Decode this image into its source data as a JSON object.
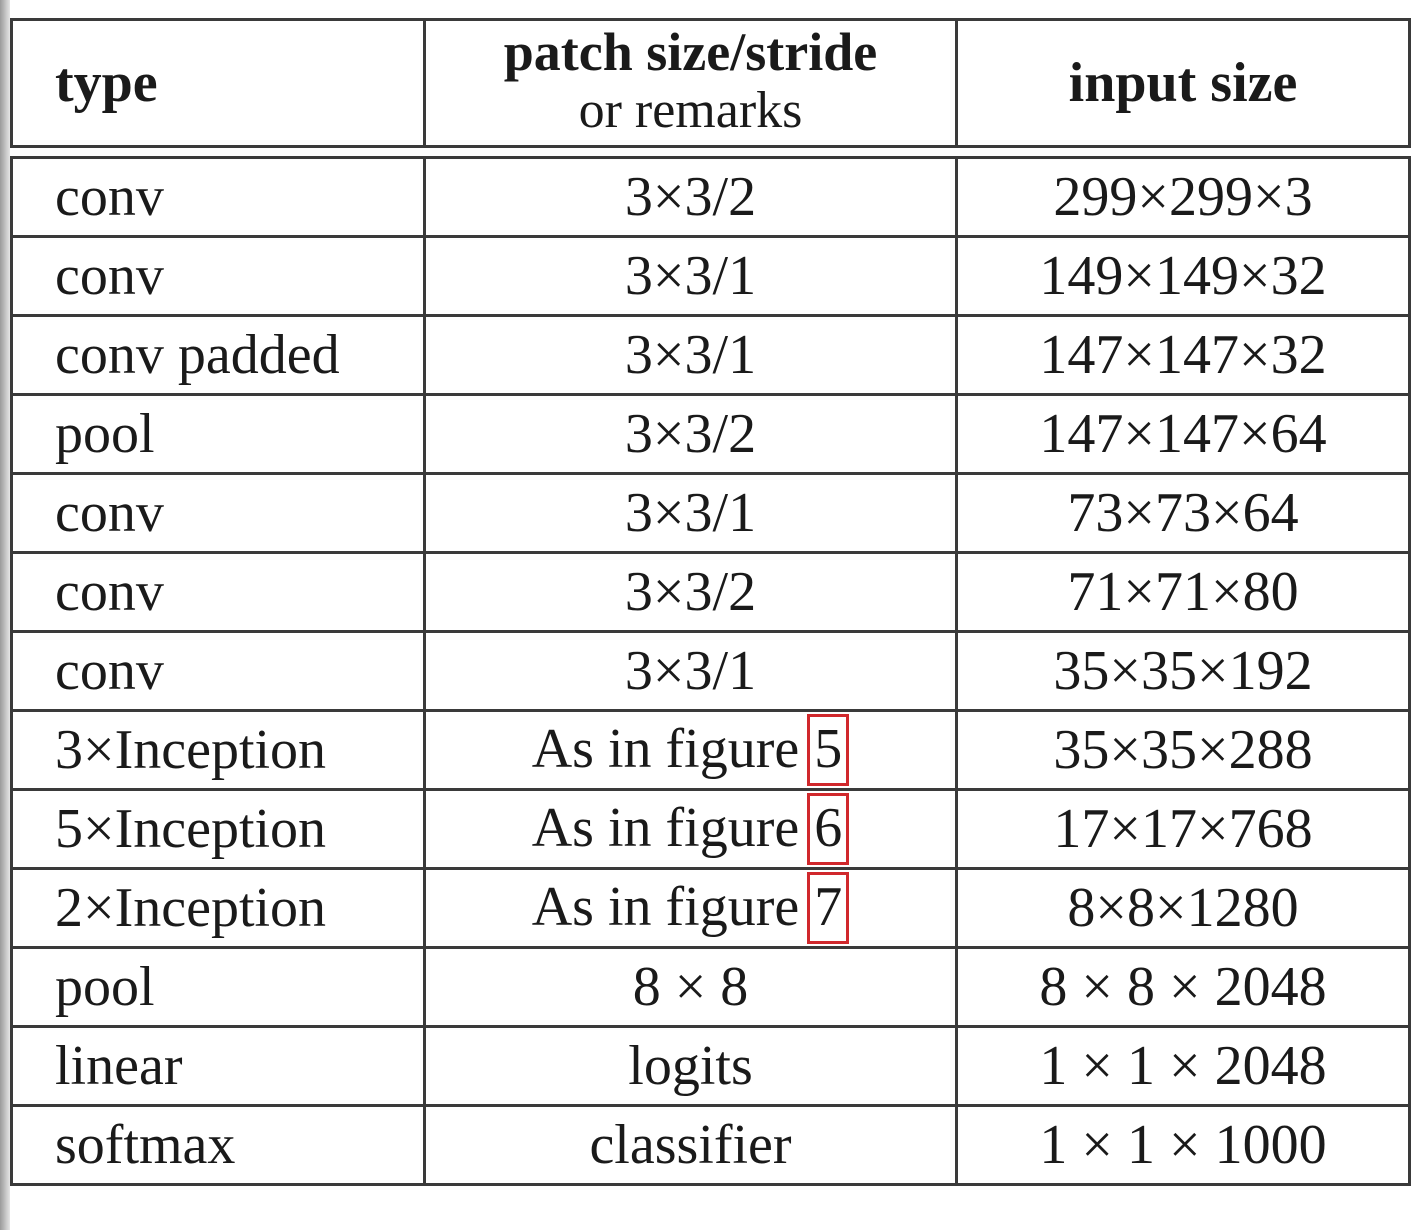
{
  "table": {
    "headers": {
      "type": "type",
      "patch_line1": "patch size/stride",
      "patch_line2": "or remarks",
      "input": "input size"
    },
    "rows": [
      {
        "type": "conv",
        "patch": "3×3/2",
        "input": "299×299×3"
      },
      {
        "type": "conv",
        "patch": "3×3/1",
        "input": "149×149×32"
      },
      {
        "type": "conv padded",
        "patch": "3×3/1",
        "input": "147×147×32"
      },
      {
        "type": "pool",
        "patch": "3×3/2",
        "input": "147×147×64"
      },
      {
        "type": "conv",
        "patch": "3×3/1",
        "input": "73×73×64"
      },
      {
        "type": "conv",
        "patch": "3×3/2",
        "input": "71×71×80"
      },
      {
        "type": "conv",
        "patch": "3×3/1",
        "input": "35×35×192"
      },
      {
        "type": "3×Inception",
        "patch_text": "As in figure",
        "patch_figure": "5",
        "input": "35×35×288"
      },
      {
        "type": "5×Inception",
        "patch_text": "As in figure",
        "patch_figure": "6",
        "input": "17×17×768"
      },
      {
        "type": "2×Inception",
        "patch_text": "As in figure",
        "patch_figure": "7",
        "input": "8×8×1280"
      },
      {
        "type": "pool",
        "patch": "8 × 8",
        "input": "8 × 8 × 2048"
      },
      {
        "type": "linear",
        "patch": "logits",
        "input": "1 × 1 × 2048"
      },
      {
        "type": "softmax",
        "patch": "classifier",
        "input": "1 × 1 × 1000"
      }
    ]
  },
  "colors": {
    "highlight_box": "#d0282c",
    "border": "#3a3a3a"
  }
}
